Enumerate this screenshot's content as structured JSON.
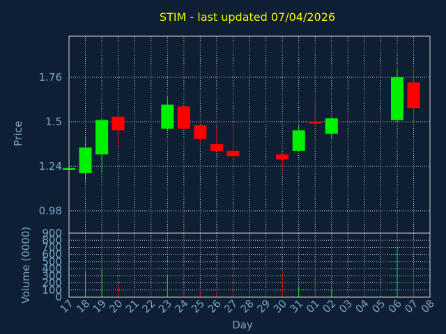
{
  "chart_data": {
    "type": "candlestick",
    "title": "STIM - last updated 07/04/2026",
    "xlabel": "Day",
    "price_panel": {
      "ylabel": "Price",
      "yticks": [
        0.98,
        1.24,
        1.5,
        1.76
      ],
      "ylim": [
        0.85,
        2.0
      ]
    },
    "volume_panel": {
      "ylabel": "Volume (0000)",
      "yticks": [
        0,
        100,
        200,
        300,
        400,
        500,
        600,
        700,
        800,
        900
      ],
      "ylim": [
        0,
        900
      ]
    },
    "xtick_labels": [
      "17",
      "18",
      "19",
      "20",
      "21",
      "22",
      "23",
      "24",
      "25",
      "26",
      "27",
      "28",
      "29",
      "30",
      "31",
      "01",
      "02",
      "03",
      "04",
      "05",
      "06",
      "07",
      "08"
    ],
    "candles": [
      {
        "day": "17",
        "open": 1.22,
        "close": 1.23,
        "high": 1.23,
        "low": 1.22,
        "volume": 0
      },
      {
        "day": "18",
        "open": 1.2,
        "close": 1.35,
        "high": 1.41,
        "low": 1.15,
        "volume": 370
      },
      {
        "day": "19",
        "open": 1.31,
        "close": 1.51,
        "high": 1.52,
        "low": 1.2,
        "volume": 390
      },
      {
        "day": "20",
        "open": 1.53,
        "close": 1.45,
        "high": 1.53,
        "low": 1.35,
        "volume": 190
      },
      {
        "day": "23",
        "open": 1.46,
        "close": 1.6,
        "high": 1.65,
        "low": 1.45,
        "volume": 300
      },
      {
        "day": "24",
        "open": 1.59,
        "close": 1.46,
        "high": 1.59,
        "low": 1.46,
        "volume": 70
      },
      {
        "day": "25",
        "open": 1.48,
        "close": 1.4,
        "high": 1.48,
        "low": 1.37,
        "volume": 70
      },
      {
        "day": "26",
        "open": 1.37,
        "close": 1.33,
        "high": 1.47,
        "low": 1.33,
        "volume": 80
      },
      {
        "day": "27",
        "open": 1.33,
        "close": 1.3,
        "high": 1.48,
        "low": 1.28,
        "volume": 370
      },
      {
        "day": "30",
        "open": 1.31,
        "close": 1.28,
        "high": 1.31,
        "low": 1.22,
        "volume": 340
      },
      {
        "day": "31",
        "open": 1.33,
        "close": 1.45,
        "high": 1.48,
        "low": 1.33,
        "volume": 150
      },
      {
        "day": "01",
        "open": 1.5,
        "close": 1.49,
        "high": 1.61,
        "low": 1.47,
        "volume": 190
      },
      {
        "day": "02",
        "open": 1.43,
        "close": 1.52,
        "high": 1.53,
        "low": 1.4,
        "volume": 120
      },
      {
        "day": "06",
        "open": 1.51,
        "close": 1.76,
        "high": 1.81,
        "low": 1.5,
        "volume": 680
      },
      {
        "day": "07",
        "open": 1.73,
        "close": 1.58,
        "high": 1.81,
        "low": 1.5,
        "volume": 360
      }
    ],
    "colors": {
      "background": "#0f1f33",
      "up": "#00f000",
      "down": "#ff0000",
      "title": "#f7f700",
      "axis_text": "#7aa6c8",
      "frame": "#d8d8d8"
    }
  }
}
